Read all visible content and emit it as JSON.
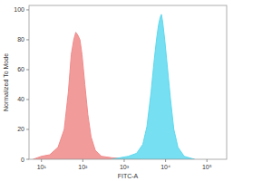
{
  "chart_data": {
    "type": "area",
    "x_label": "FITC-A",
    "y_label": "Normalized To Mode",
    "log": "x",
    "xlim": [
      5,
      300000
    ],
    "xticks": [
      {
        "value": 10,
        "label": "10¹"
      },
      {
        "value": 100,
        "label": "10²"
      },
      {
        "value": 1000,
        "label": "10³"
      },
      {
        "value": 10000,
        "label": "10⁴"
      },
      {
        "value": 100000,
        "label": "10⁵"
      }
    ],
    "ylim": [
      0,
      103
    ],
    "yticks": [
      0,
      20,
      40,
      60,
      80,
      100
    ],
    "series": [
      {
        "color": "#f08a8a",
        "x": [
          6.3,
          10,
          15.8,
          25.1,
          35.5,
          44.7,
          52.5,
          60.3,
          67.6,
          75.9,
          85.1,
          95.5,
          112,
          132,
          158,
          200,
          282,
          501,
          1000,
          2512
        ],
        "values": [
          0,
          2,
          3,
          8,
          20,
          45,
          70,
          80,
          85,
          83,
          80,
          70,
          50,
          30,
          15,
          6,
          2,
          1,
          0.5,
          0
        ]
      },
      {
        "color": "#5ed9ee",
        "x": [
          501,
          794,
          1259,
          1995,
          2818,
          3548,
          4467,
          5248,
          6026,
          6761,
          7413,
          7943,
          8511,
          9550,
          11220,
          13183,
          15849,
          19953,
          28184,
          50119
        ],
        "values": [
          0,
          1,
          2,
          4,
          10,
          22,
          45,
          65,
          80,
          90,
          95,
          97,
          92,
          80,
          60,
          40,
          20,
          8,
          2,
          0
        ]
      }
    ]
  }
}
